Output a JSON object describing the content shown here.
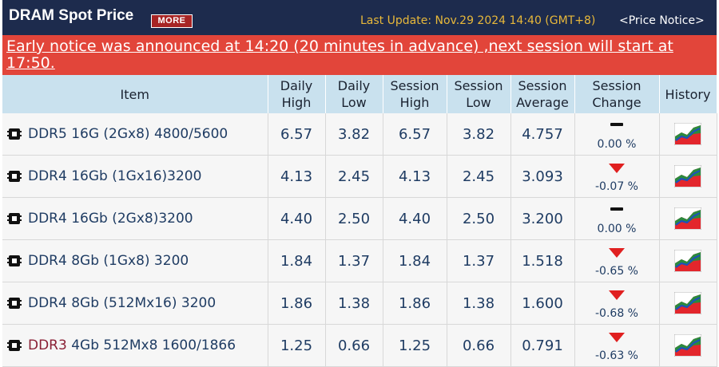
{
  "header": {
    "title": "DRAM Spot Price",
    "more_label": "MORE",
    "last_update": "Last Update: Nov.29 2024 14:40 (GMT+8)",
    "price_notice": "<Price Notice>"
  },
  "banner": {
    "text": "Early notice was announced at 14:20 (20 minutes in advance) ,next session will start at 17:50."
  },
  "columns": {
    "item": "Item",
    "daily_high": [
      "Daily",
      "High"
    ],
    "daily_low": [
      "Daily",
      "Low"
    ],
    "session_high": [
      "Session",
      "High"
    ],
    "session_low": [
      "Session",
      "Low"
    ],
    "session_average": [
      "Session",
      "Average"
    ],
    "session_change": [
      "Session",
      "Change"
    ],
    "history": "History"
  },
  "rows": [
    {
      "item_prefix": "",
      "item": "DDR5 16G (2Gx8) 4800/5600",
      "daily_high": "6.57",
      "daily_low": "3.82",
      "session_high": "6.57",
      "session_low": "3.82",
      "session_average": "4.757",
      "change_pct": "0.00 %",
      "trend": "flat"
    },
    {
      "item_prefix": "",
      "item": "DDR4 16Gb (1Gx16)3200",
      "daily_high": "4.13",
      "daily_low": "2.45",
      "session_high": "4.13",
      "session_low": "2.45",
      "session_average": "3.093",
      "change_pct": "-0.07 %",
      "trend": "down"
    },
    {
      "item_prefix": "",
      "item": "DDR4 16Gb (2Gx8)3200",
      "daily_high": "4.40",
      "daily_low": "2.50",
      "session_high": "4.40",
      "session_low": "2.50",
      "session_average": "3.200",
      "change_pct": "0.00 %",
      "trend": "flat"
    },
    {
      "item_prefix": "",
      "item": "DDR4 8Gb (1Gx8) 3200",
      "daily_high": "1.84",
      "daily_low": "1.37",
      "session_high": "1.84",
      "session_low": "1.37",
      "session_average": "1.518",
      "change_pct": "-0.65 %",
      "trend": "down"
    },
    {
      "item_prefix": "",
      "item": "DDR4 8Gb (512Mx16) 3200",
      "daily_high": "1.86",
      "daily_low": "1.38",
      "session_high": "1.86",
      "session_low": "1.38",
      "session_average": "1.600",
      "change_pct": "-0.68 %",
      "trend": "down"
    },
    {
      "item_prefix": "DDR3",
      "item": " 4Gb 512Mx8 1600/1866",
      "daily_high": "1.25",
      "daily_low": "0.66",
      "session_high": "1.25",
      "session_low": "0.66",
      "session_average": "0.791",
      "change_pct": "-0.63 %",
      "trend": "down"
    }
  ],
  "colors": {
    "header_bg": "#1d2b4d",
    "banner_bg": "#e2453a",
    "table_header_bg": "#c9e1ee",
    "update_text": "#e8b83a",
    "down_arrow": "#e02020",
    "ddr3_text": "#8a2035"
  },
  "icons": {
    "item": "memory-chip-icon",
    "history": "history-chart-icon",
    "trend_down": "down-arrow-icon",
    "trend_flat": "flat-dash-icon"
  }
}
